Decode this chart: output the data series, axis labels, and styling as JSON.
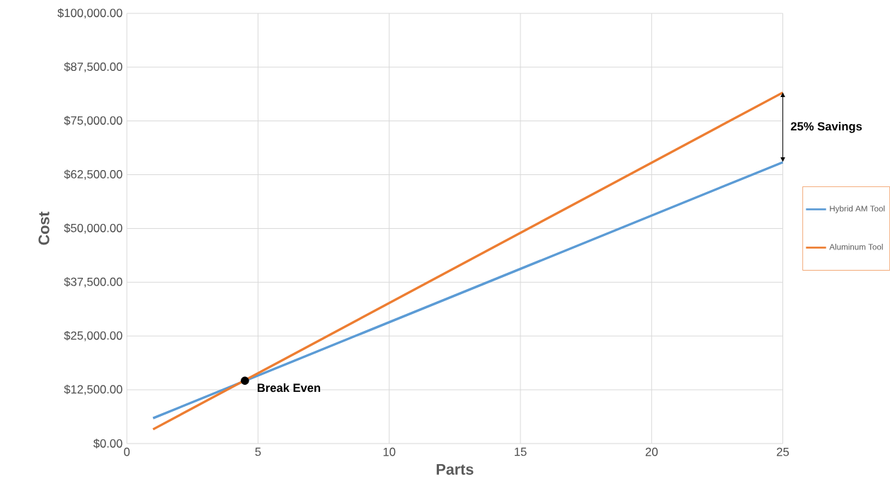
{
  "chart_data": {
    "type": "line",
    "xlabel": "Parts",
    "ylabel": "Cost",
    "x": [
      1,
      25
    ],
    "series": [
      {
        "name": "Hybrid AM Tool",
        "color": "#5b9bd5",
        "values": [
          5900,
          65400
        ]
      },
      {
        "name": "Aluminum Tool",
        "color": "#ed7d31",
        "values": [
          3300,
          81600
        ]
      }
    ],
    "xlim": [
      0,
      25
    ],
    "xticks": [
      0,
      5,
      10,
      15,
      20,
      25
    ],
    "ylim": [
      0,
      100000
    ],
    "yticks": [
      {
        "value": 0,
        "label": "$0.00"
      },
      {
        "value": 12500,
        "label": "$12,500.00"
      },
      {
        "value": 25000,
        "label": "$25,000.00"
      },
      {
        "value": 37500,
        "label": "$37,500.00"
      },
      {
        "value": 50000,
        "label": "$50,000.00"
      },
      {
        "value": 62500,
        "label": "$62,500.00"
      },
      {
        "value": 75000,
        "label": "$75,000.00"
      },
      {
        "value": 87500,
        "label": "$87,500.00"
      },
      {
        "value": 100000,
        "label": "$100,000.00"
      }
    ],
    "annotations": [
      {
        "text": "Break Even",
        "x": 4.5,
        "y": 14600
      },
      "25% Savings"
    ],
    "grid": true,
    "legend": "right",
    "marker": "none",
    "line_style": "solid"
  }
}
